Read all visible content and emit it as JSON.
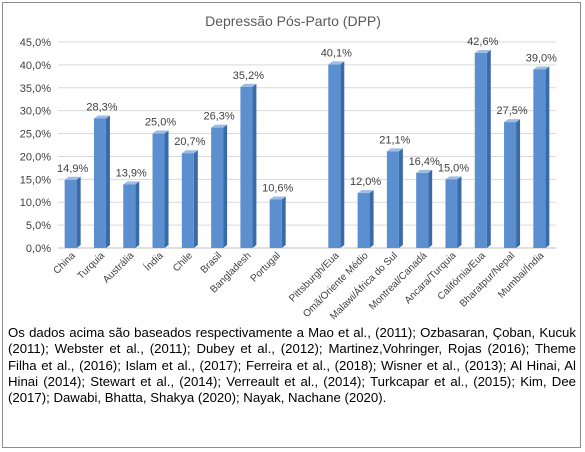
{
  "chart_data": {
    "type": "bar",
    "title": "Depressão Pós-Parto (DPP)",
    "xlabel": "",
    "ylabel": "",
    "ylim": [
      0,
      45
    ],
    "yticks": [
      "0,0%",
      "5,0%",
      "10,0%",
      "15,0%",
      "20,0%",
      "25,0%",
      "30,0%",
      "35,0%",
      "40,0%",
      "45,0%"
    ],
    "grid": true,
    "categories": [
      "China",
      "Turquia",
      "Austrália",
      "Índia",
      "Chile",
      "Brasil",
      "Bangladesh",
      "Portugal",
      "",
      "Pittsburgh/Eua",
      "Omã/Oriente Médio",
      "Malawi/África do Sul",
      "Montreal/Canadá",
      "Ancara/Turquia",
      "Califórnia/Eua",
      "Bharatpur/Nepal",
      "Mumbai/Índia"
    ],
    "values": [
      14.9,
      28.3,
      13.9,
      25.0,
      20.7,
      26.3,
      35.2,
      10.6,
      null,
      40.1,
      12.0,
      21.1,
      16.4,
      15.0,
      42.6,
      27.5,
      39.0
    ],
    "labels": [
      "14,9%",
      "28,3%",
      "13,9%",
      "25,0%",
      "20,7%",
      "26,3%",
      "35,2%",
      "10,6%",
      "",
      "40,1%",
      "12,0%",
      "21,1%",
      "16,4%",
      "15,0%",
      "42,6%",
      "27,5%",
      "39,0%"
    ],
    "colors": {
      "bar_front": "#5b8fd0",
      "bar_side": "#3a6aa8",
      "bar_top": "#9dbce6",
      "grid": "#d9d9d9",
      "text": "#404040",
      "title": "#595959"
    }
  },
  "caption": "Os dados acima são baseados respectivamente a Mao et al., (2011); Ozbasaran, Çoban, Kucuk (2011); Webster et al., (2011); Dubey et al., (2012); Martinez,Vohringer, Rojas (2016); Theme Filha et al., (2016); Islam et al., (2017); Ferreira et al., (2018); Wisner et al., (2013); Al Hinai, Al Hinai (2014); Stewart et al., (2014); Verreault et al., (2014); Turkcapar et al., (2015); Kim, Dee (2017); Dawabi, Bhatta, Shakya (2020); Nayak, Nachane (2020)."
}
